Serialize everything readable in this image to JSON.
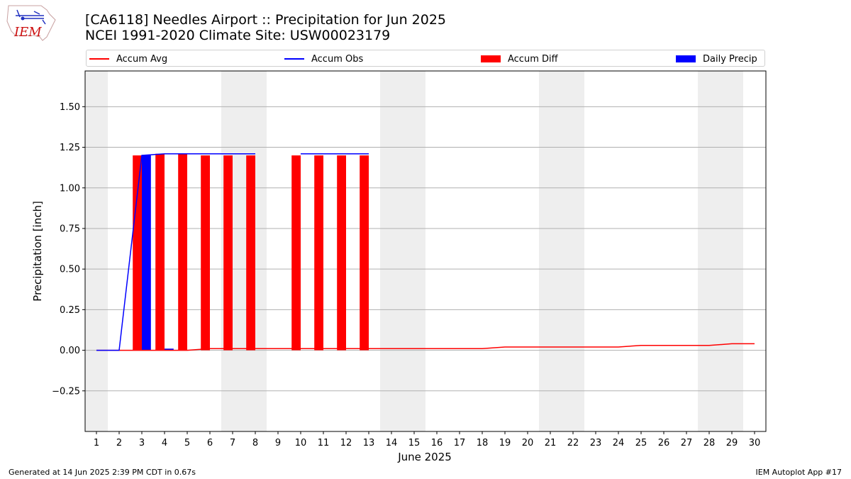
{
  "title": {
    "line1": "[CA6118] Needles Airport :: Precipitation for Jun 2025",
    "line2": "NCEI 1991-2020 Climate Site: USW00023179"
  },
  "footer": {
    "left": "Generated at 14 Jun 2025 2:39 PM CDT in 0.67s",
    "right": "IEM Autoplot App #17"
  },
  "logo": {
    "text": "IEM"
  },
  "colors": {
    "accum_avg": "#ff0000",
    "accum_obs": "#0000ff",
    "accum_diff": "#ff0000",
    "daily_precip": "#0000ff",
    "weekend_shade": "#eeeeee",
    "grid": "#b0b0b0"
  },
  "chart_data": {
    "type": "bar",
    "xlabel": "June 2025",
    "ylabel": "Precipitation [inch]",
    "xlim": [
      0.5,
      30.5
    ],
    "ylim": [
      -0.5,
      1.72
    ],
    "yticks": [
      -0.25,
      0.0,
      0.25,
      0.5,
      0.75,
      1.0,
      1.25,
      1.5
    ],
    "ytick_labels": [
      "−0.25",
      "0.00",
      "0.25",
      "0.50",
      "0.75",
      "1.00",
      "1.25",
      "1.50"
    ],
    "x": [
      1,
      2,
      3,
      4,
      5,
      6,
      7,
      8,
      9,
      10,
      11,
      12,
      13,
      14,
      15,
      16,
      17,
      18,
      19,
      20,
      21,
      22,
      23,
      24,
      25,
      26,
      27,
      28,
      29,
      30
    ],
    "xtick_labels": [
      "1",
      "2",
      "3",
      "4",
      "5",
      "6",
      "7",
      "8",
      "9",
      "10",
      "11",
      "12",
      "13",
      "14",
      "15",
      "16",
      "17",
      "18",
      "19",
      "20",
      "21",
      "22",
      "23",
      "24",
      "25",
      "26",
      "27",
      "28",
      "29",
      "30"
    ],
    "grid": "horizontal",
    "legend_position": "top",
    "weekend_shading": [
      [
        0.5,
        1.5
      ],
      [
        6.5,
        8.5
      ],
      [
        13.5,
        15.5
      ],
      [
        20.5,
        22.5
      ],
      [
        27.5,
        29.5
      ]
    ],
    "series": [
      {
        "name": "Accum Avg",
        "kind": "line",
        "x": [
          1,
          2,
          3,
          4,
          5,
          6,
          7,
          8,
          9,
          10,
          11,
          12,
          13,
          14,
          15,
          16,
          17,
          18,
          19,
          20,
          21,
          22,
          23,
          24,
          25,
          26,
          27,
          28,
          29,
          30
        ],
        "values": [
          0,
          0,
          0,
          0,
          0,
          0.01,
          0.01,
          0.01,
          0.01,
          0.01,
          0.01,
          0.01,
          0.01,
          0.01,
          0.01,
          0.01,
          0.01,
          0.01,
          0.02,
          0.02,
          0.02,
          0.02,
          0.02,
          0.02,
          0.03,
          0.03,
          0.03,
          0.03,
          0.04,
          0.04
        ]
      },
      {
        "name": "Accum Obs",
        "kind": "line",
        "segments": [
          {
            "x": [
              1,
              2,
              3,
              4,
              5,
              6,
              7,
              8
            ],
            "values": [
              0,
              0,
              1.2,
              1.21,
              1.21,
              1.21,
              1.21,
              1.21
            ]
          },
          {
            "x": [
              10,
              11,
              12,
              13
            ],
            "values": [
              1.21,
              1.21,
              1.21,
              1.21
            ]
          }
        ]
      },
      {
        "name": "Accum Diff",
        "kind": "bar",
        "x": [
          3,
          4,
          5,
          6,
          7,
          8,
          10,
          11,
          12,
          13
        ],
        "values": [
          1.2,
          1.21,
          1.21,
          1.2,
          1.2,
          1.2,
          1.2,
          1.2,
          1.2,
          1.2
        ]
      },
      {
        "name": "Daily Precip",
        "kind": "bar",
        "x": [
          3,
          4
        ],
        "values": [
          1.2,
          0.01
        ]
      }
    ]
  }
}
